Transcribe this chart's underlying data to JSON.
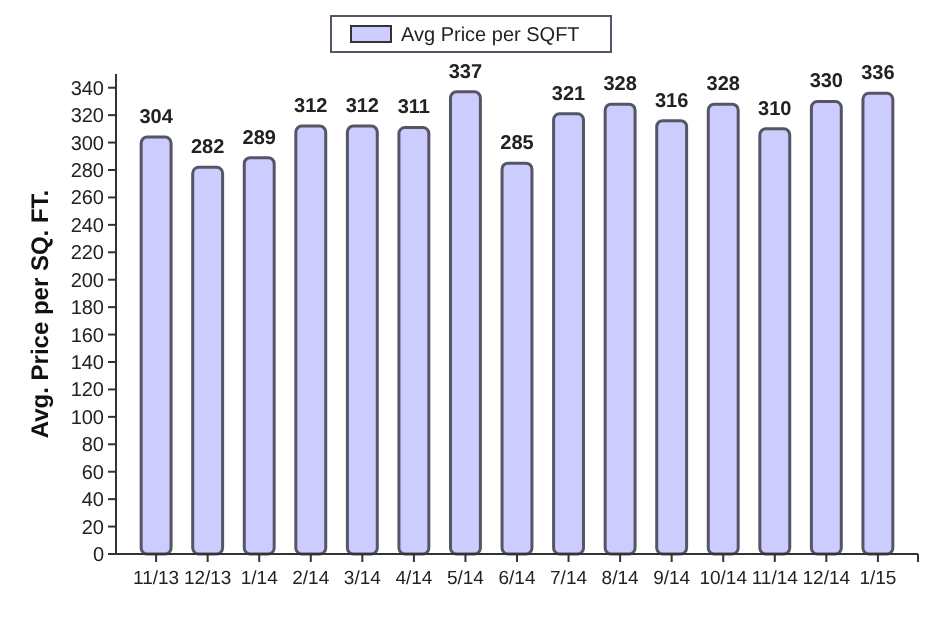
{
  "chart_data": {
    "type": "bar",
    "ylabel": "Avg. Price per SQ. FT.",
    "categories": [
      "11/13",
      "12/13",
      "1/14",
      "2/14",
      "3/14",
      "4/14",
      "5/14",
      "6/14",
      "7/14",
      "8/14",
      "9/14",
      "10/14",
      "11/14",
      "12/14",
      "1/15"
    ],
    "series": [
      {
        "name": "Avg Price per SQFT",
        "color": "#ccccff",
        "values": [
          304,
          282,
          289,
          312,
          312,
          311,
          337,
          285,
          321,
          328,
          316,
          328,
          310,
          330,
          336
        ]
      }
    ],
    "ylim": [
      0,
      350
    ],
    "yticks": [
      0,
      20,
      40,
      60,
      80,
      100,
      120,
      140,
      160,
      180,
      200,
      220,
      240,
      260,
      280,
      300,
      320,
      340
    ],
    "data_labels": true,
    "legend": "top",
    "grid": false
  }
}
